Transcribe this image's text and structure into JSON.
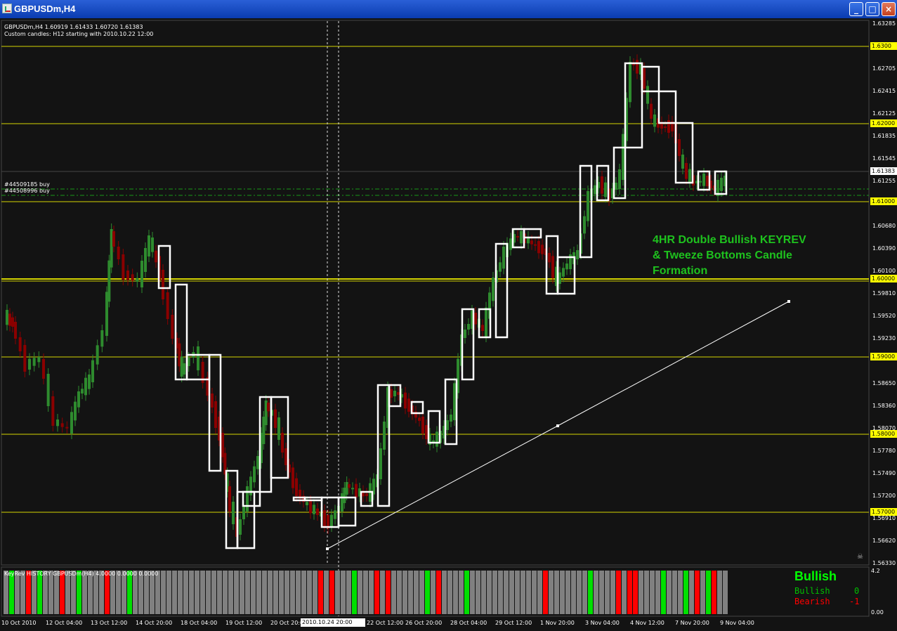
{
  "window": {
    "title": "GBPUSDm,H4",
    "buttons": [
      "_",
      "□",
      "×"
    ]
  },
  "chart_header": {
    "line1": "GBPUSDm,H4  1.60919 1.61433 1.60720 1.61383",
    "line2": "Custom candles: H12 starting with 2010.10.22 12:00"
  },
  "price_axis": [
    "1.63285",
    "1.62705",
    "1.62415",
    "1.62125",
    "1.61835",
    "1.61545",
    "1.61255",
    "1.60680",
    "1.60390",
    "1.60100",
    "1.59810",
    "1.59520",
    "1.59230",
    "1.58650",
    "1.58360",
    "1.58070",
    "1.57780",
    "1.57490",
    "1.57200",
    "1.56910",
    "1.56620",
    "1.56330"
  ],
  "price_tags": {
    "level_1_630": "1.6300",
    "level_1_620": "1.62000",
    "current": "1.61383",
    "level_1_610": "1.61000",
    "level_1_600": "1.60000",
    "level_1_590": "1.59000",
    "level_1_580": "1.58000",
    "level_1_570": "1.57000"
  },
  "orders": [
    {
      "label": "#44509185 buy"
    },
    {
      "label": "#44508996 buy"
    }
  ],
  "annotation": {
    "line1": "4HR Double Bullish KEYREV",
    "line2": "& Tweeze Bottoms Candle",
    "line3": "Formation"
  },
  "indicator": {
    "header": "KeyRev HISTORY GBPUSDm(H4) 4.0000 0.0000 0.0000",
    "signal": "Bullish",
    "bullish_label": "Bullish",
    "bullish_value": "0",
    "bearish_label": "Bearish",
    "bearish_value": "-1",
    "scale_top": "4.2",
    "scale_bottom": "0.00"
  },
  "time_axis": [
    "10 Oct 2010",
    "12 Oct 04:00",
    "13 Oct 12:00",
    "14 Oct 20:00",
    "18 Oct 04:00",
    "19 Oct 12:00",
    "20 Oct 20:00",
    "22 Oct 12:00",
    "26 Oct 20:00",
    "28 Oct 04:00",
    "29 Oct 12:00",
    "1 Nov 20:00",
    "3 Nov 04:00",
    "4 Nov 12:00",
    "7 Nov 20:00",
    "9 Nov 04:00"
  ],
  "time_cursor": "2010.10.24 20:00",
  "colors": {
    "background": "#131313",
    "bull_candle": "#2e8b2e",
    "bear_candle": "#8b0000",
    "level_line": "#ffff00",
    "custom_candle": "#ffffff",
    "annotation": "#1ec21e"
  }
}
